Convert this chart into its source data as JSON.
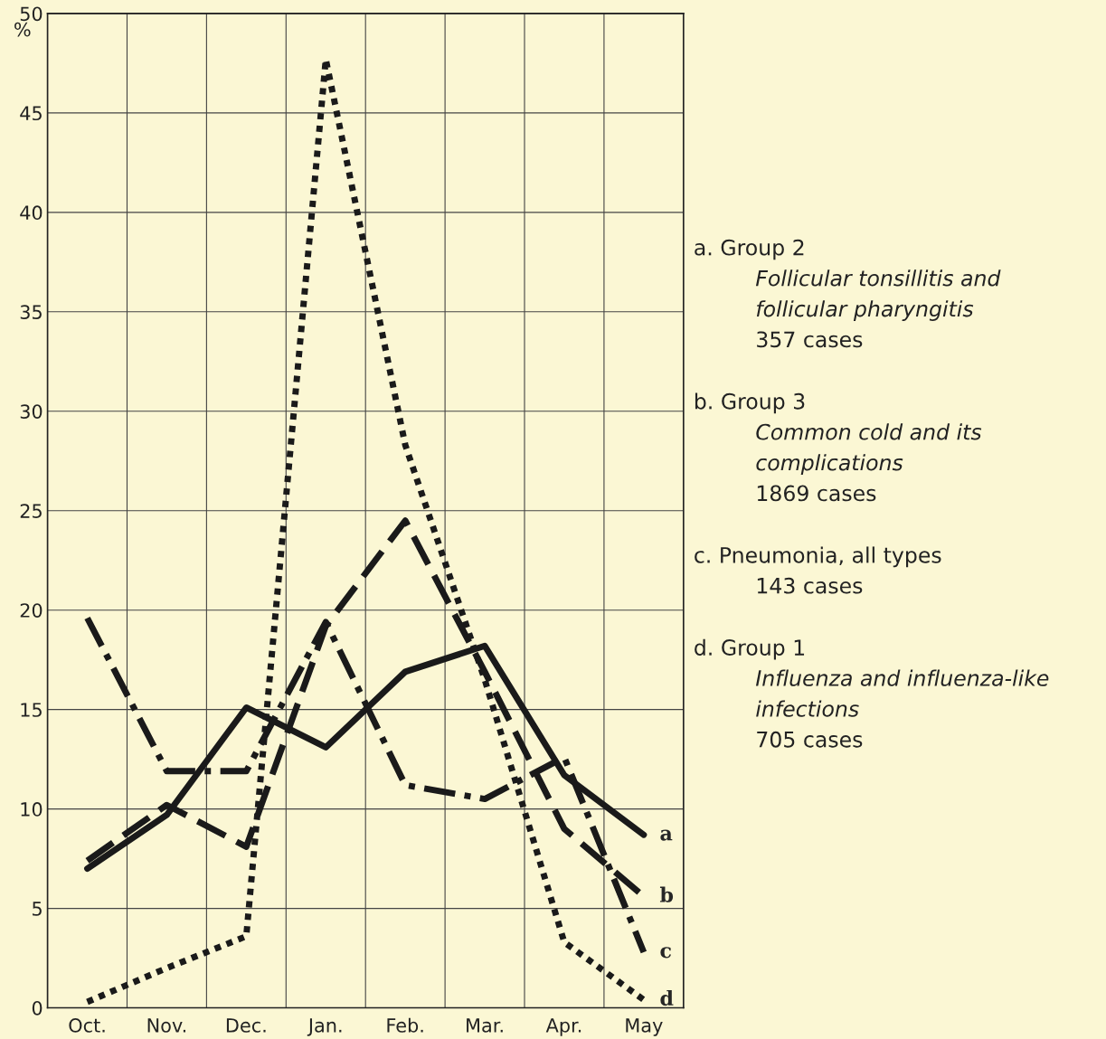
{
  "chart_data": {
    "type": "line",
    "ylabel": "%",
    "categories": [
      "Oct.",
      "Nov.",
      "Dec.",
      "Jan.",
      "Feb.",
      "Mar.",
      "Apr.",
      "May"
    ],
    "series": [
      {
        "name": "a",
        "color": "#1a1a1a",
        "line_style": "solid",
        "values": [
          7.0,
          9.7,
          15.1,
          13.1,
          16.9,
          18.2,
          11.7,
          8.7
        ]
      },
      {
        "name": "b",
        "color": "#1a1a1a",
        "line_style": "dashed",
        "values": [
          7.4,
          10.2,
          8.1,
          19.2,
          24.5,
          16.9,
          9.0,
          5.6
        ]
      },
      {
        "name": "c",
        "color": "#1a1a1a",
        "line_style": "dashdot",
        "values": [
          19.6,
          11.9,
          11.9,
          19.4,
          11.2,
          10.5,
          12.6,
          2.8
        ]
      },
      {
        "name": "d",
        "color": "#1a1a1a",
        "line_style": "dotted",
        "values": [
          0.3,
          2.0,
          3.6,
          47.7,
          28.3,
          16.5,
          3.3,
          0.4
        ]
      }
    ],
    "ylim": [
      0,
      50
    ],
    "yticks": [
      0,
      5,
      10,
      15,
      20,
      25,
      30,
      35,
      40,
      45,
      50
    ],
    "grid": true,
    "legend": false,
    "annotations": [
      "a. Group 2\nFollicular tonsillitis and\nfollicular pharyngitis\n357 cases",
      "b. Group 3\nCommon cold and its\ncomplications\n1869 cases",
      "c. Pneumonia, all types\n143 cases",
      "d. Group 1\nInfluenza and influenza-like\ninfections\n705 cases"
    ]
  }
}
